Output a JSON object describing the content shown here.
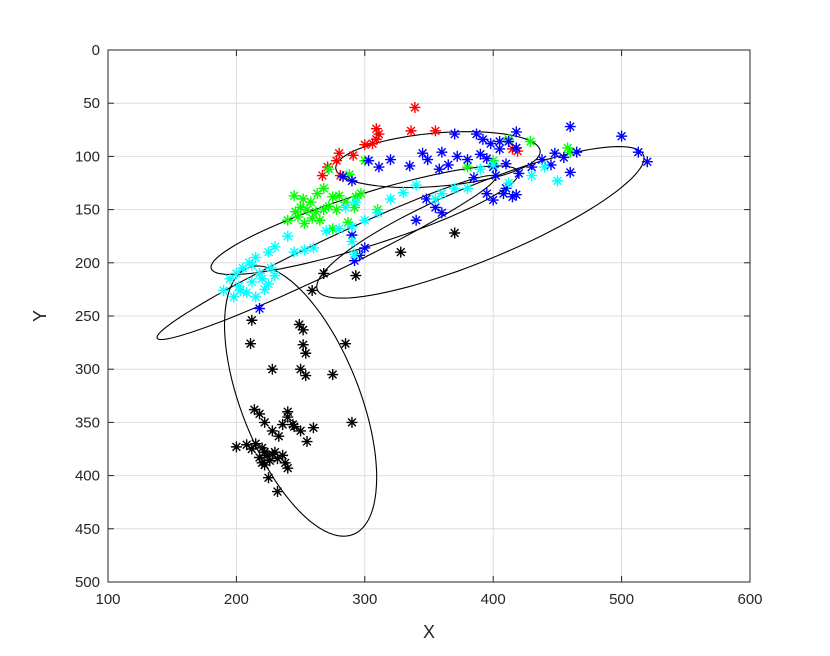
{
  "chart_data": {
    "type": "scatter",
    "title": "",
    "xlabel": "X",
    "ylabel": "Y",
    "xlim": [
      100,
      600
    ],
    "ylim": [
      0,
      500
    ],
    "y_reversed": true,
    "grid": true,
    "marker": "asterisk",
    "x_ticks": [
      "100",
      "200",
      "300",
      "400",
      "500",
      "600"
    ],
    "y_ticks": [
      "0",
      "50",
      "100",
      "150",
      "200",
      "250",
      "300",
      "350",
      "400",
      "450",
      "500"
    ],
    "series": [
      {
        "color": "#ff0000",
        "points": [
          [
            339,
            54
          ],
          [
            309,
            74
          ],
          [
            311,
            79
          ],
          [
            336,
            76
          ],
          [
            355,
            76
          ],
          [
            309,
            84
          ],
          [
            306,
            88
          ],
          [
            300,
            89
          ],
          [
            291,
            99
          ],
          [
            280,
            97
          ],
          [
            278,
            104
          ],
          [
            267,
            118
          ],
          [
            281,
            118
          ],
          [
            271,
            110
          ],
          [
            415,
            93
          ],
          [
            419,
            95
          ]
        ]
      },
      {
        "color": "#00ff00",
        "points": [
          [
            429,
            86
          ],
          [
            412,
            84
          ],
          [
            458,
            92
          ],
          [
            460,
            96
          ],
          [
            400,
            104
          ],
          [
            380,
            110
          ],
          [
            300,
            104
          ],
          [
            288,
            117
          ],
          [
            272,
            112
          ],
          [
            245,
            137
          ],
          [
            252,
            140
          ],
          [
            258,
            143
          ],
          [
            263,
            135
          ],
          [
            268,
            130
          ],
          [
            275,
            138
          ],
          [
            280,
            137
          ],
          [
            285,
            143
          ],
          [
            293,
            138
          ],
          [
            297,
            135
          ],
          [
            310,
            150
          ],
          [
            250,
            148
          ],
          [
            255,
            150
          ],
          [
            262,
            152
          ],
          [
            268,
            150
          ],
          [
            272,
            147
          ],
          [
            246,
            152
          ],
          [
            248,
            157
          ],
          [
            259,
            158
          ],
          [
            265,
            160
          ],
          [
            253,
            163
          ],
          [
            240,
            160
          ],
          [
            287,
            162
          ],
          [
            278,
            150
          ],
          [
            292,
            148
          ],
          [
            275,
            168
          ]
        ]
      },
      {
        "color": "#0000ff",
        "points": [
          [
            460,
            72
          ],
          [
            465,
            96
          ],
          [
            455,
            101
          ],
          [
            500,
            81
          ],
          [
            513,
            96
          ],
          [
            520,
            105
          ],
          [
            418,
            77
          ],
          [
            405,
            86
          ],
          [
            370,
            79
          ],
          [
            387,
            79
          ],
          [
            392,
            84
          ],
          [
            398,
            88
          ],
          [
            405,
            93
          ],
          [
            412,
            86
          ],
          [
            418,
            92
          ],
          [
            345,
            97
          ],
          [
            360,
            96
          ],
          [
            372,
            100
          ],
          [
            380,
            103
          ],
          [
            390,
            98
          ],
          [
            395,
            102
          ],
          [
            400,
            110
          ],
          [
            410,
            107
          ],
          [
            420,
            116
          ],
          [
            430,
            110
          ],
          [
            438,
            103
          ],
          [
            445,
            108
          ],
          [
            460,
            115
          ],
          [
            448,
            97
          ],
          [
            385,
            120
          ],
          [
            395,
            135
          ],
          [
            400,
            141
          ],
          [
            408,
            135
          ],
          [
            415,
            138
          ],
          [
            418,
            136
          ],
          [
            410,
            130
          ],
          [
            402,
            118
          ],
          [
            365,
            108
          ],
          [
            358,
            112
          ],
          [
            349,
            103
          ],
          [
            335,
            109
          ],
          [
            320,
            103
          ],
          [
            311,
            110
          ],
          [
            303,
            104
          ],
          [
            290,
            123
          ],
          [
            283,
            119
          ],
          [
            348,
            140
          ],
          [
            355,
            148
          ],
          [
            360,
            153
          ],
          [
            340,
            160
          ],
          [
            300,
            186
          ],
          [
            296,
            193
          ],
          [
            292,
            198
          ],
          [
            290,
            174
          ],
          [
            218,
            243
          ]
        ]
      },
      {
        "color": "#00ffff",
        "points": [
          [
            450,
            123
          ],
          [
            440,
            110
          ],
          [
            430,
            118
          ],
          [
            412,
            125
          ],
          [
            400,
            108
          ],
          [
            390,
            112
          ],
          [
            380,
            130
          ],
          [
            370,
            130
          ],
          [
            360,
            135
          ],
          [
            355,
            140
          ],
          [
            340,
            127
          ],
          [
            330,
            134
          ],
          [
            320,
            140
          ],
          [
            310,
            153
          ],
          [
            300,
            160
          ],
          [
            293,
            143
          ],
          [
            285,
            148
          ],
          [
            290,
            166
          ],
          [
            290,
            180
          ],
          [
            292,
            192
          ],
          [
            280,
            168
          ],
          [
            270,
            170
          ],
          [
            260,
            186
          ],
          [
            253,
            188
          ],
          [
            245,
            190
          ],
          [
            240,
            175
          ],
          [
            230,
            185
          ],
          [
            225,
            190
          ],
          [
            215,
            195
          ],
          [
            210,
            200
          ],
          [
            218,
            210
          ],
          [
            205,
            205
          ],
          [
            200,
            210
          ],
          [
            195,
            215
          ],
          [
            220,
            215
          ],
          [
            225,
            220
          ],
          [
            230,
            212
          ],
          [
            212,
            218
          ],
          [
            202,
            222
          ],
          [
            208,
            228
          ],
          [
            198,
            232
          ],
          [
            190,
            226
          ],
          [
            222,
            225
          ],
          [
            215,
            232
          ],
          [
            203,
            226
          ],
          [
            227,
            205
          ],
          [
            212,
            202
          ]
        ]
      },
      {
        "color": "#000000",
        "points": [
          [
            370,
            172
          ],
          [
            328,
            190
          ],
          [
            268,
            210
          ],
          [
            293,
            212
          ],
          [
            259,
            226
          ],
          [
            212,
            254
          ],
          [
            211,
            276
          ],
          [
            249,
            258
          ],
          [
            252,
            263
          ],
          [
            252,
            277
          ],
          [
            254,
            285
          ],
          [
            250,
            300
          ],
          [
            254,
            306
          ],
          [
            285,
            276
          ],
          [
            275,
            305
          ],
          [
            228,
            300
          ],
          [
            290,
            350
          ],
          [
            240,
            340
          ],
          [
            244,
            352
          ],
          [
            214,
            338
          ],
          [
            218,
            342
          ],
          [
            222,
            350
          ],
          [
            228,
            358
          ],
          [
            233,
            363
          ],
          [
            236,
            352
          ],
          [
            240,
            345
          ],
          [
            245,
            354
          ],
          [
            250,
            358
          ],
          [
            255,
            368
          ],
          [
            260,
            355
          ],
          [
            215,
            370
          ],
          [
            220,
            374
          ],
          [
            222,
            378
          ],
          [
            224,
            381
          ],
          [
            226,
            386
          ],
          [
            228,
            380
          ],
          [
            230,
            378
          ],
          [
            232,
            384
          ],
          [
            236,
            381
          ],
          [
            238,
            388
          ],
          [
            240,
            393
          ],
          [
            200,
            373
          ],
          [
            208,
            371
          ],
          [
            212,
            375
          ],
          [
            218,
            383
          ],
          [
            220,
            388
          ],
          [
            222,
            390
          ],
          [
            225,
            402
          ],
          [
            232,
            415
          ]
        ]
      }
    ],
    "ellipses": [
      {
        "center": [
          357,
          103
        ],
        "semi_axes": [
          80,
          25
        ],
        "angle_deg": -6
      },
      {
        "center": [
          300,
          160
        ],
        "semi_axes": [
          128,
          24
        ],
        "angle_deg": -21
      },
      {
        "center": [
          390,
          162
        ],
        "semi_axes": [
          142,
          34
        ],
        "angle_deg": -27
      },
      {
        "center": [
          270,
          195
        ],
        "semi_axes": [
          152,
          15
        ],
        "angle_deg": -30
      },
      {
        "center": [
          250,
          330
        ],
        "semi_axes": [
          132,
          47
        ],
        "angle_deg": 73
      }
    ]
  }
}
